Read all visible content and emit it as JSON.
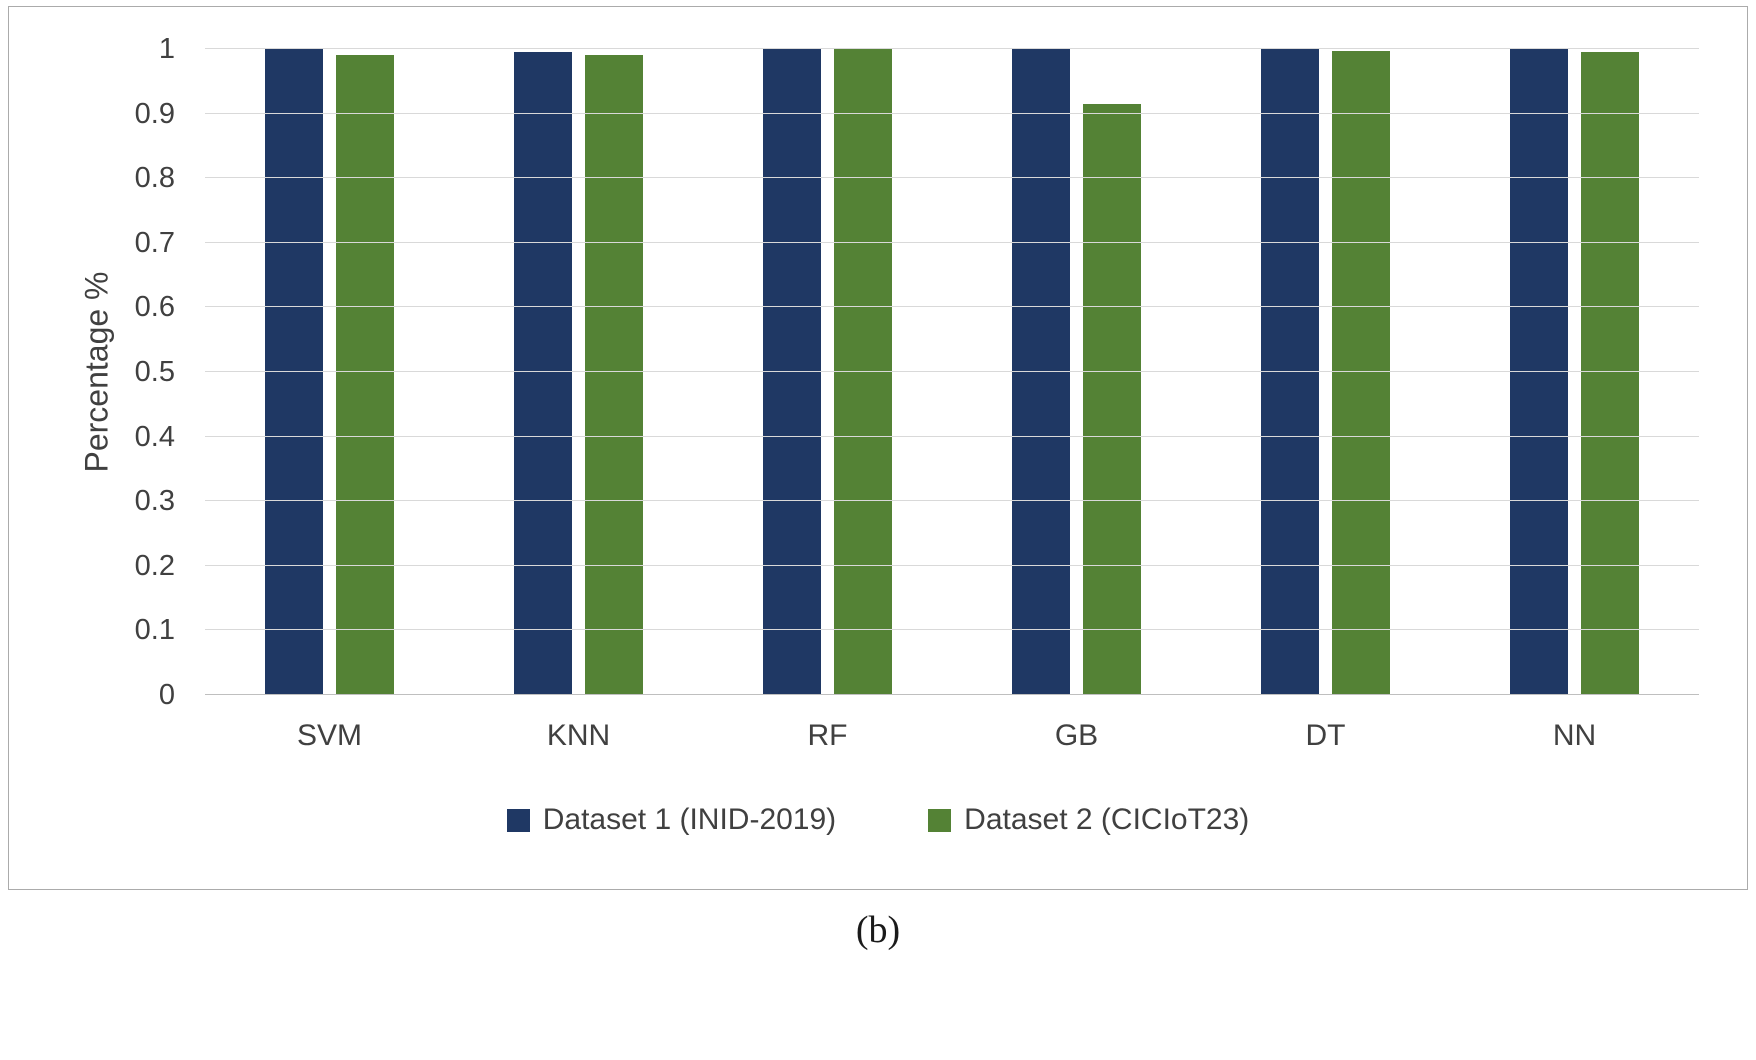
{
  "caption": "(b)",
  "chart_data": {
    "type": "bar",
    "title": "",
    "xlabel": "",
    "ylabel": "Percentage %",
    "ylim": [
      0,
      1
    ],
    "yticks": [
      0,
      0.1,
      0.2,
      0.3,
      0.4,
      0.5,
      0.6,
      0.7,
      0.8,
      0.9,
      1
    ],
    "ytick_labels": [
      "0",
      "0.1",
      "0.2",
      "0.3",
      "0.4",
      "0.5",
      "0.6",
      "0.7",
      "0.8",
      "0.9",
      "1"
    ],
    "grid": true,
    "legend_position": "bottom",
    "categories": [
      "SVM",
      "KNN",
      "RF",
      "GB",
      "DT",
      "NN"
    ],
    "series": [
      {
        "name": "Dataset 1 (INID-2019)",
        "color": "#1f3864",
        "values": [
          1.0,
          0.995,
          1.0,
          1.0,
          1.0,
          1.0
        ]
      },
      {
        "name": "Dataset 2 (CICIoT23)",
        "color": "#548235",
        "values": [
          0.99,
          0.99,
          1.0,
          0.915,
          0.997,
          0.995
        ]
      }
    ]
  }
}
